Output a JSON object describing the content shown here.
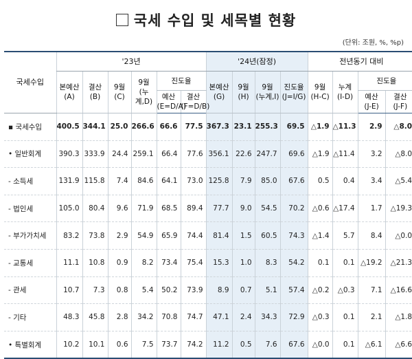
{
  "title": "국세 수입 및 세목별 현황",
  "unit": "(단위: 조원, %, %p)",
  "header": {
    "row_label": "국세수입",
    "group_23": "'23년",
    "group_24": "'24년(잠정)",
    "group_yoy": "전년동기 대비",
    "progress": "진도율",
    "progress_24": "진도율",
    "progress_yoy": "진도율",
    "c_budget_23": [
      "본예산",
      "(A)"
    ],
    "c_settle_23": [
      "결산",
      "(B)"
    ],
    "c_sep_23": [
      "9월",
      "(C)"
    ],
    "c_cum_23": [
      "9월",
      "(누계,D)"
    ],
    "c_prog_budget_23": [
      "예산",
      "(E=D/A)"
    ],
    "c_prog_settle_23": [
      "결산",
      "(F=D/B)"
    ],
    "c_budget_24": [
      "본예산",
      "(G)"
    ],
    "c_sep_24": [
      "9월",
      "(H)"
    ],
    "c_cum_24": [
      "9월",
      "(누계,I)"
    ],
    "c_prog_24": [
      "진도율",
      "(J=I/G)"
    ],
    "c_sep_yoy": [
      "9월",
      "(H-C)"
    ],
    "c_cum_yoy": [
      "누계",
      "(I-D)"
    ],
    "c_prog_budget_yoy": [
      "예산",
      "(J-E)"
    ],
    "c_prog_settle_yoy": [
      "결산",
      "(J-F)"
    ]
  },
  "rows": [
    {
      "label": "▪ 국세수입",
      "values": [
        "400.5",
        "344.1",
        "25.0",
        "266.6",
        "66.6",
        "77.5",
        "367.3",
        "23.1",
        "255.3",
        "69.5",
        "△1.9",
        "△11.3",
        "2.9",
        "△8.0"
      ]
    },
    {
      "label": "• 일반회계",
      "values": [
        "390.3",
        "333.9",
        "24.4",
        "259.1",
        "66.4",
        "77.6",
        "356.1",
        "22.6",
        "247.7",
        "69.6",
        "△1.9",
        "△11.4",
        "3.2",
        "△8.0"
      ]
    },
    {
      "label": "- 소득세",
      "values": [
        "131.9",
        "115.8",
        "7.4",
        "84.6",
        "64.1",
        "73.0",
        "125.8",
        "7.9",
        "85.0",
        "67.6",
        "0.5",
        "0.4",
        "3.4",
        "△5.4"
      ]
    },
    {
      "label": "- 법인세",
      "values": [
        "105.0",
        "80.4",
        "9.6",
        "71.9",
        "68.5",
        "89.4",
        "77.7",
        "9.0",
        "54.5",
        "70.2",
        "△0.6",
        "△17.4",
        "1.7",
        "△19.3"
      ]
    },
    {
      "label": "- 부가가치세",
      "values": [
        "83.2",
        "73.8",
        "2.9",
        "54.9",
        "65.9",
        "74.4",
        "81.4",
        "1.5",
        "60.5",
        "74.3",
        "△1.4",
        "5.7",
        "8.4",
        "△0.0"
      ]
    },
    {
      "label": "- 교통세",
      "values": [
        "11.1",
        "10.8",
        "0.9",
        "8.2",
        "73.4",
        "75.4",
        "15.3",
        "1.0",
        "8.3",
        "54.2",
        "0.1",
        "0.1",
        "△19.2",
        "△21.3"
      ]
    },
    {
      "label": "- 관세",
      "values": [
        "10.7",
        "7.3",
        "0.8",
        "5.4",
        "50.2",
        "73.9",
        "8.9",
        "0.7",
        "5.1",
        "57.4",
        "△0.2",
        "△0.3",
        "7.1",
        "△16.6"
      ]
    },
    {
      "label": "- 기타",
      "values": [
        "48.3",
        "45.8",
        "2.8",
        "34.2",
        "70.8",
        "74.7",
        "47.1",
        "2.4",
        "34.3",
        "72.9",
        "△0.3",
        "0.1",
        "2.1",
        "△1.8"
      ]
    },
    {
      "label": "• 특별회계",
      "values": [
        "10.2",
        "10.1",
        "0.6",
        "7.5",
        "73.7",
        "74.2",
        "11.2",
        "0.5",
        "7.6",
        "67.6",
        "△0.0",
        "0.1",
        "△6.1",
        "△6.6"
      ]
    }
  ]
}
